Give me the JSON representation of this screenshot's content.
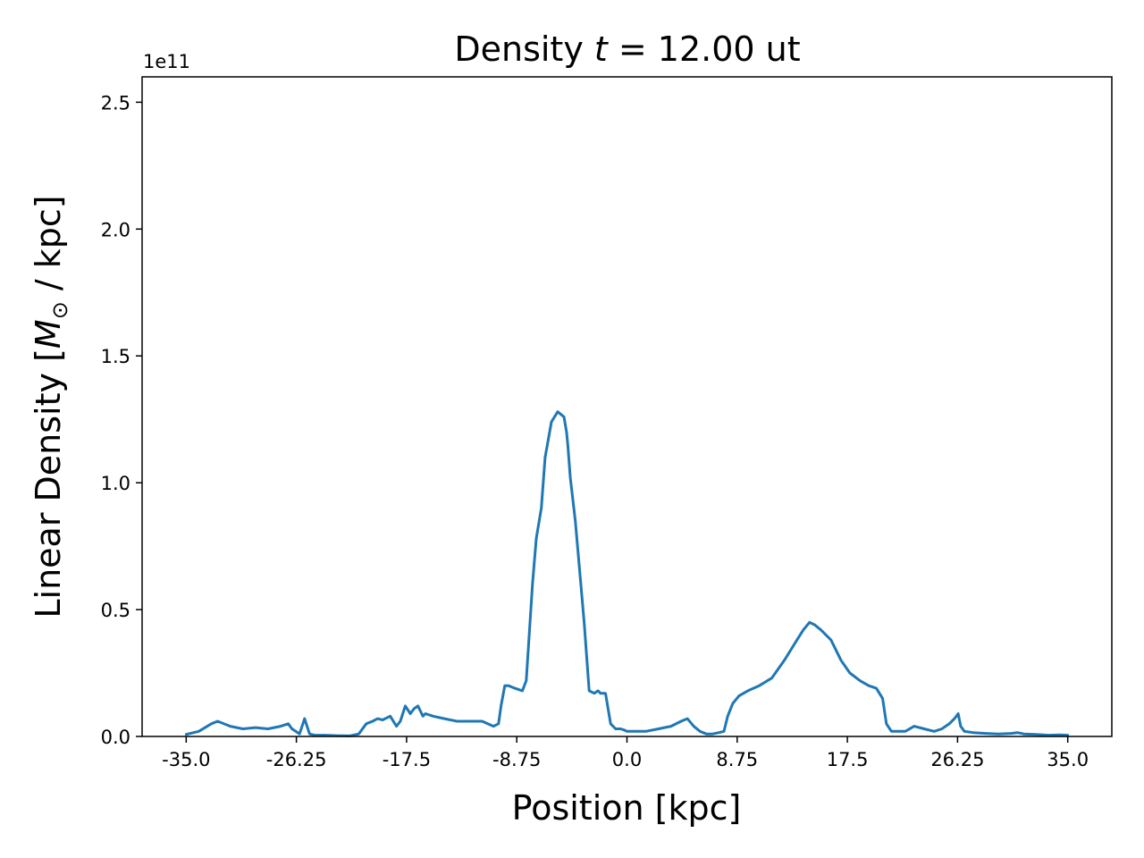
{
  "chart_data": {
    "type": "line",
    "title_prefix": "Density ",
    "title_var": "t",
    "title_suffix": " =  12.00 ut",
    "xlabel": "Position [kpc]",
    "ylabel_prefix": "Linear Density [",
    "ylabel_var": "M",
    "ylabel_sub": "⊙",
    "ylabel_suffix": " / kpc]",
    "y_offset_label": "1e11",
    "xlim": [
      -38.5,
      38.5
    ],
    "ylim": [
      0,
      2.6
    ],
    "x_ticks": [
      -35.0,
      -26.25,
      -17.5,
      -8.75,
      0.0,
      8.75,
      17.5,
      26.25,
      35.0
    ],
    "x_tick_labels": [
      "-35.0",
      "-26.25",
      "-17.5",
      "-8.75",
      "0.0",
      "8.75",
      "17.5",
      "26.25",
      "35.0"
    ],
    "y_ticks": [
      0.0,
      0.5,
      1.0,
      1.5,
      2.0,
      2.5
    ],
    "y_tick_labels": [
      "0.0",
      "0.5",
      "1.0",
      "1.5",
      "2.0",
      "2.5"
    ],
    "grid": false,
    "line_color": "#1f77b4",
    "series": [
      {
        "x": [
          -35.0,
          -34.0,
          -33.0,
          -32.5,
          -31.5,
          -30.5,
          -29.5,
          -28.5,
          -27.5,
          -26.9,
          -26.6,
          -26.3,
          -26.0,
          -25.6,
          -25.2,
          -24.8,
          -24.0,
          -23.0,
          -22.0,
          -21.3,
          -20.7,
          -20.2,
          -19.8,
          -19.4,
          -18.8,
          -18.3,
          -18.0,
          -17.6,
          -17.2,
          -16.9,
          -16.6,
          -16.2,
          -16.0,
          -15.4,
          -14.5,
          -13.5,
          -12.5,
          -11.5,
          -10.6,
          -10.2,
          -10.0,
          -9.7,
          -9.4,
          -8.9,
          -8.3,
          -8.0,
          -7.5,
          -7.2,
          -6.8,
          -6.5,
          -6.0,
          -5.5,
          -5.0,
          -4.8,
          -4.7,
          -4.5,
          -4.1,
          -3.7,
          -3.4,
          -3.0,
          -2.6,
          -2.3,
          -2.1,
          -1.7,
          -1.3,
          -0.9,
          -0.5,
          -0.2,
          0.0,
          0.6,
          1.5,
          2.5,
          3.5,
          4.3,
          4.8,
          5.3,
          5.8,
          6.3,
          6.8,
          7.3,
          7.7,
          8.0,
          8.4,
          8.9,
          9.6,
          10.5,
          11.5,
          12.5,
          13.5,
          14.0,
          14.5,
          14.9,
          15.4,
          16.2,
          17.0,
          17.7,
          18.5,
          19.2,
          19.8,
          20.3,
          20.6,
          21.0,
          21.5,
          22.1,
          22.8,
          23.6,
          24.4,
          25.0,
          25.6,
          26.0,
          26.3,
          26.5,
          26.8,
          27.5,
          28.5,
          29.5,
          30.5,
          31.0,
          31.5,
          32.5,
          33.5,
          34.3,
          35.0
        ],
        "y": [
          0.008,
          0.02,
          0.05,
          0.06,
          0.04,
          0.03,
          0.035,
          0.03,
          0.04,
          0.05,
          0.03,
          0.02,
          0.01,
          0.07,
          0.01,
          0.005,
          0.005,
          0.003,
          0.002,
          0.01,
          0.05,
          0.06,
          0.07,
          0.065,
          0.08,
          0.04,
          0.06,
          0.12,
          0.09,
          0.11,
          0.12,
          0.08,
          0.09,
          0.08,
          0.07,
          0.06,
          0.06,
          0.06,
          0.04,
          0.05,
          0.12,
          0.2,
          0.2,
          0.19,
          0.18,
          0.22,
          0.6,
          0.78,
          0.9,
          1.1,
          1.24,
          1.28,
          1.26,
          1.2,
          1.15,
          1.02,
          0.85,
          0.62,
          0.45,
          0.18,
          0.17,
          0.18,
          0.17,
          0.17,
          0.05,
          0.03,
          0.03,
          0.025,
          0.02,
          0.02,
          0.02,
          0.03,
          0.04,
          0.06,
          0.07,
          0.04,
          0.02,
          0.01,
          0.01,
          0.015,
          0.02,
          0.08,
          0.13,
          0.16,
          0.18,
          0.2,
          0.23,
          0.3,
          0.38,
          0.42,
          0.45,
          0.44,
          0.42,
          0.38,
          0.3,
          0.25,
          0.22,
          0.2,
          0.19,
          0.15,
          0.05,
          0.02,
          0.02,
          0.02,
          0.04,
          0.03,
          0.02,
          0.03,
          0.05,
          0.07,
          0.09,
          0.04,
          0.02,
          0.015,
          0.012,
          0.01,
          0.012,
          0.015,
          0.01,
          0.008,
          0.005,
          0.006,
          0.005
        ]
      }
    ]
  }
}
